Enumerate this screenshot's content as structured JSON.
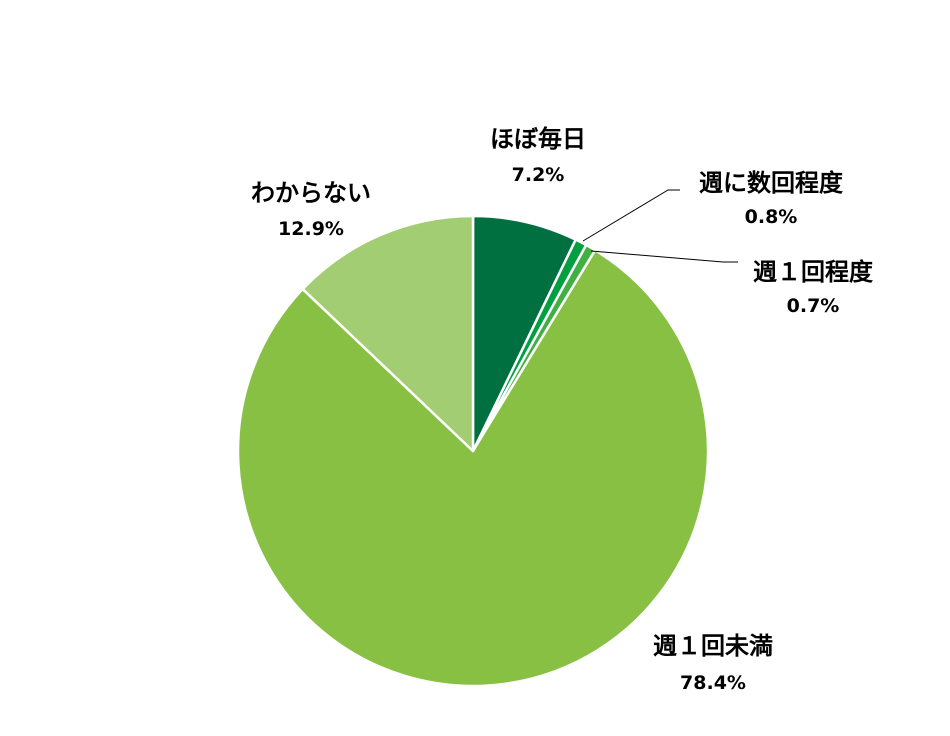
{
  "chart_data": {
    "type": "pie",
    "slices": [
      {
        "label": "ほぼ毎日",
        "value": 7.2,
        "value_label": "7.2%",
        "color": "#007040"
      },
      {
        "label": "週に数回程度",
        "value": 0.8,
        "value_label": "0.8%",
        "color": "#00a040"
      },
      {
        "label": "週１回程度",
        "value": 0.7,
        "value_label": "0.7%",
        "color": "#40b040"
      },
      {
        "label": "週１回未満",
        "value": 78.4,
        "value_label": "78.4%",
        "color": "#88c044"
      },
      {
        "label": "わからない",
        "value": 12.9,
        "value_label": "12.9%",
        "color": "#a2cd72"
      }
    ],
    "start_angle_deg": 0,
    "direction": "clockwise",
    "slice_border_color": "#ffffff"
  }
}
